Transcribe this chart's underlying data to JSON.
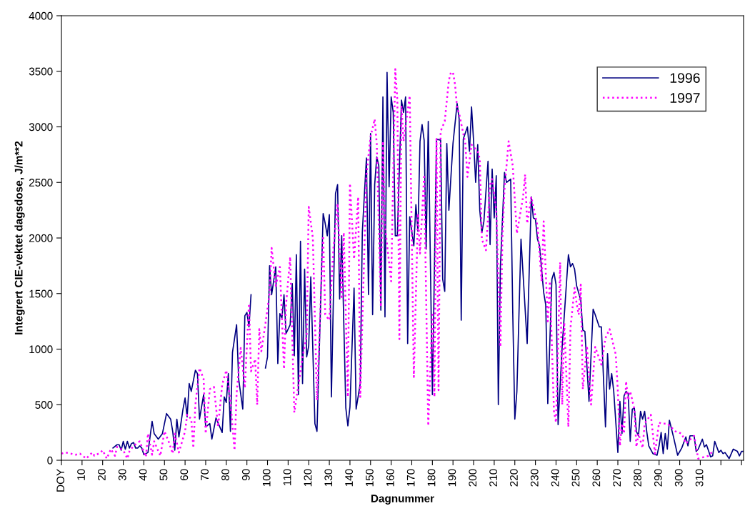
{
  "chart_data": {
    "type": "line",
    "xlabel": "Dagnummer",
    "ylabel": "Integrert CIE-vektet dagsdose, J/m**2",
    "xlim": [
      0,
      331
    ],
    "ylim": [
      0,
      4000
    ],
    "xticks": [
      {
        "value": 0,
        "label": "DOY"
      },
      10,
      20,
      30,
      40,
      50,
      60,
      70,
      80,
      90,
      100,
      110,
      120,
      130,
      140,
      150,
      160,
      170,
      180,
      190,
      200,
      210,
      220,
      230,
      240,
      250,
      260,
      270,
      280,
      290,
      300,
      310,
      {
        "value": 320,
        "label": null
      },
      {
        "value": 330,
        "label": null
      }
    ],
    "yticks": [
      0,
      500,
      1000,
      1500,
      2000,
      2500,
      3000,
      3500,
      4000
    ],
    "grid": false,
    "legend": "top right",
    "marker": "none",
    "series": [
      {
        "name": "1996",
        "color": "#000080",
        "line_style": "solid",
        "x": [
          25,
          27,
          28,
          29,
          30,
          31,
          32,
          33,
          34,
          35,
          36,
          37,
          38,
          39,
          40,
          42,
          44,
          45,
          47,
          49,
          51,
          53,
          54,
          55,
          56,
          57,
          59,
          60,
          61,
          62,
          63,
          65,
          66,
          67,
          69,
          70,
          72,
          73,
          75,
          78,
          79,
          80,
          81,
          82,
          83,
          85,
          86,
          88,
          89,
          90,
          91,
          92,
          95,
          99,
          100,
          101,
          102,
          104,
          105,
          106,
          107,
          108,
          109,
          111,
          112,
          113,
          114,
          115,
          116,
          117,
          118,
          119,
          120,
          121,
          123,
          124,
          127,
          128,
          129,
          130,
          131,
          133,
          134,
          135,
          136,
          138,
          139,
          140,
          142,
          143,
          145,
          146,
          147,
          148,
          149,
          150,
          151,
          152,
          153,
          154,
          155,
          156,
          157,
          158,
          159,
          160,
          161,
          162,
          163,
          165,
          166,
          167,
          168,
          169,
          171,
          172,
          173,
          174,
          175,
          176,
          177,
          178,
          180,
          182,
          184,
          185,
          186,
          187,
          188,
          190,
          192,
          193,
          194,
          195,
          197,
          198,
          199,
          200,
          201,
          202,
          203,
          204,
          205,
          207,
          208,
          209,
          210,
          211,
          212,
          213,
          215,
          216,
          218,
          219,
          220,
          221,
          223,
          226,
          228,
          229,
          230,
          231,
          232,
          234,
          235,
          236,
          238,
          239,
          240,
          241,
          243,
          246,
          247,
          248,
          249,
          250,
          252,
          253,
          254,
          256,
          258,
          259,
          261,
          262,
          264,
          265,
          266,
          267,
          268,
          270,
          271,
          272,
          273,
          274,
          275,
          276,
          277,
          278,
          279,
          280,
          281,
          282,
          283,
          284,
          285,
          287,
          289,
          290,
          291,
          292,
          293,
          294,
          295,
          297,
          299,
          301,
          303,
          304,
          305,
          307,
          308,
          309,
          311,
          312,
          313,
          315,
          316,
          317,
          319,
          320,
          321,
          322,
          324,
          326,
          328,
          329,
          330,
          331
        ],
        "values": [
          110,
          140,
          140,
          90,
          170,
          100,
          170,
          110,
          150,
          160,
          110,
          110,
          130,
          110,
          50,
          70,
          350,
          240,
          190,
          240,
          420,
          370,
          260,
          90,
          370,
          210,
          460,
          560,
          390,
          690,
          620,
          810,
          780,
          370,
          590,
          300,
          330,
          190,
          380,
          250,
          570,
          520,
          780,
          260,
          970,
          1220,
          730,
          460,
          1300,
          1330,
          1200,
          1490,
          null,
          830,
          930,
          1750,
          1490,
          1740,
          870,
          1320,
          1280,
          1490,
          1140,
          1220,
          1590,
          940,
          1850,
          590,
          1970,
          690,
          1720,
          930,
          1030,
          1650,
          330,
          260,
          2220,
          2130,
          2020,
          2210,
          570,
          2400,
          2480,
          1450,
          2020,
          470,
          310,
          480,
          1550,
          460,
          690,
          2050,
          2390,
          2720,
          1490,
          2940,
          1310,
          2480,
          2730,
          2650,
          1350,
          3270,
          1290,
          3490,
          2460,
          3270,
          3130,
          2020,
          2020,
          3240,
          3130,
          3270,
          1050,
          2190,
          1930,
          2300,
          2060,
          2870,
          3020,
          2880,
          1900,
          3050,
          590,
          2890,
          2880,
          1630,
          1520,
          2850,
          2250,
          2850,
          3210,
          3070,
          1260,
          2890,
          3000,
          2780,
          3180,
          2870,
          2500,
          2840,
          2250,
          2050,
          2150,
          2690,
          1940,
          2620,
          2180,
          2560,
          500,
          1740,
          2590,
          2500,
          2530,
          1330,
          370,
          620,
          1990,
          1050,
          2370,
          2180,
          2170,
          1990,
          1930,
          1510,
          1400,
          510,
          1630,
          1690,
          1580,
          320,
          1030,
          1850,
          1740,
          1770,
          1720,
          1570,
          1440,
          1170,
          1160,
          530,
          1360,
          1310,
          1200,
          1200,
          300,
          960,
          640,
          780,
          620,
          70,
          530,
          240,
          580,
          620,
          600,
          170,
          460,
          470,
          260,
          220,
          440,
          370,
          440,
          260,
          130,
          60,
          45,
          130,
          250,
          60,
          240,
          100,
          360,
          210,
          45,
          110,
          210,
          130,
          220,
          220,
          80,
          100,
          190,
          120,
          140,
          30,
          40,
          170,
          70,
          90,
          60,
          70,
          15,
          100,
          80,
          40,
          80,
          80
        ]
      },
      {
        "name": "1997",
        "color": "#ff00ff",
        "line_style": "dotted",
        "x": [
          0,
          2,
          7,
          9,
          12,
          15,
          16,
          19,
          20,
          22,
          24,
          26,
          27,
          30,
          32,
          33,
          35,
          38,
          41,
          42,
          44,
          45,
          48,
          50,
          52,
          54,
          55,
          57,
          60,
          61,
          63,
          64,
          65,
          67,
          69,
          70,
          72,
          74,
          76,
          78,
          80,
          82,
          84,
          85,
          87,
          89,
          91,
          92,
          94,
          95,
          96,
          97,
          99,
          101,
          102,
          104,
          106,
          108,
          109,
          111,
          113,
          116,
          117,
          119,
          120,
          122,
          124,
          127,
          128,
          130,
          132,
          134,
          136,
          137,
          139,
          140,
          142,
          144,
          145,
          148,
          150,
          152,
          153,
          155,
          156,
          157,
          160,
          162,
          163,
          164,
          165,
          166,
          169,
          171,
          173,
          174,
          176,
          178,
          180,
          181,
          182,
          183,
          184,
          186,
          188,
          189,
          190,
          191,
          192,
          193,
          196,
          197,
          199,
          202,
          203,
          204,
          206,
          208,
          209,
          211,
          213,
          214,
          215,
          217,
          219,
          221,
          224,
          225,
          226,
          228,
          231,
          233,
          234,
          236,
          237,
          239,
          240,
          242,
          243,
          244,
          246,
          247,
          249,
          250,
          251,
          252,
          253,
          255,
          257,
          259,
          262,
          264,
          266,
          269,
          270,
          271,
          272,
          273,
          274,
          275,
          276,
          278,
          279,
          280,
          282,
          283,
          286,
          288,
          290,
          291,
          294,
          298,
          301,
          303,
          307,
          309,
          312,
          314,
          316
        ],
        "values": [
          60,
          70,
          50,
          60,
          15,
          70,
          40,
          70,
          90,
          15,
          100,
          40,
          120,
          90,
          15,
          80,
          130,
          170,
          30,
          240,
          50,
          170,
          40,
          260,
          170,
          60,
          240,
          70,
          260,
          410,
          370,
          110,
          500,
          830,
          730,
          240,
          640,
          660,
          300,
          680,
          810,
          530,
          90,
          600,
          1010,
          650,
          1410,
          800,
          910,
          500,
          1180,
          980,
          1230,
          1500,
          1910,
          1570,
          1740,
          820,
          1400,
          1830,
          430,
          800,
          930,
          1120,
          2280,
          2000,
          540,
          2020,
          1310,
          1260,
          1910,
          2310,
          1450,
          2050,
          570,
          2490,
          1810,
          2370,
          570,
          2570,
          2910,
          3070,
          2850,
          1380,
          2870,
          2110,
          1610,
          3520,
          3240,
          1090,
          3190,
          2870,
          3280,
          750,
          2220,
          1860,
          2570,
          310,
          1330,
          570,
          2890,
          630,
          2960,
          3050,
          3420,
          3490,
          3490,
          3380,
          3170,
          3120,
          2850,
          2550,
          2840,
          2780,
          2710,
          1990,
          1890,
          2480,
          2530,
          2250,
          1020,
          2020,
          2440,
          2870,
          2650,
          2040,
          2370,
          2570,
          2130,
          2370,
          2110,
          1610,
          2150,
          1250,
          1610,
          440,
          340,
          1780,
          500,
          1240,
          300,
          1190,
          1550,
          1410,
          1310,
          1580,
          640,
          1030,
          500,
          1020,
          860,
          1100,
          1180,
          950,
          620,
          130,
          330,
          240,
          710,
          540,
          620,
          460,
          120,
          240,
          110,
          330,
          410,
          60,
          340,
          330,
          330,
          260,
          240,
          150,
          220,
          15,
          30,
          40,
          80
        ]
      }
    ]
  }
}
